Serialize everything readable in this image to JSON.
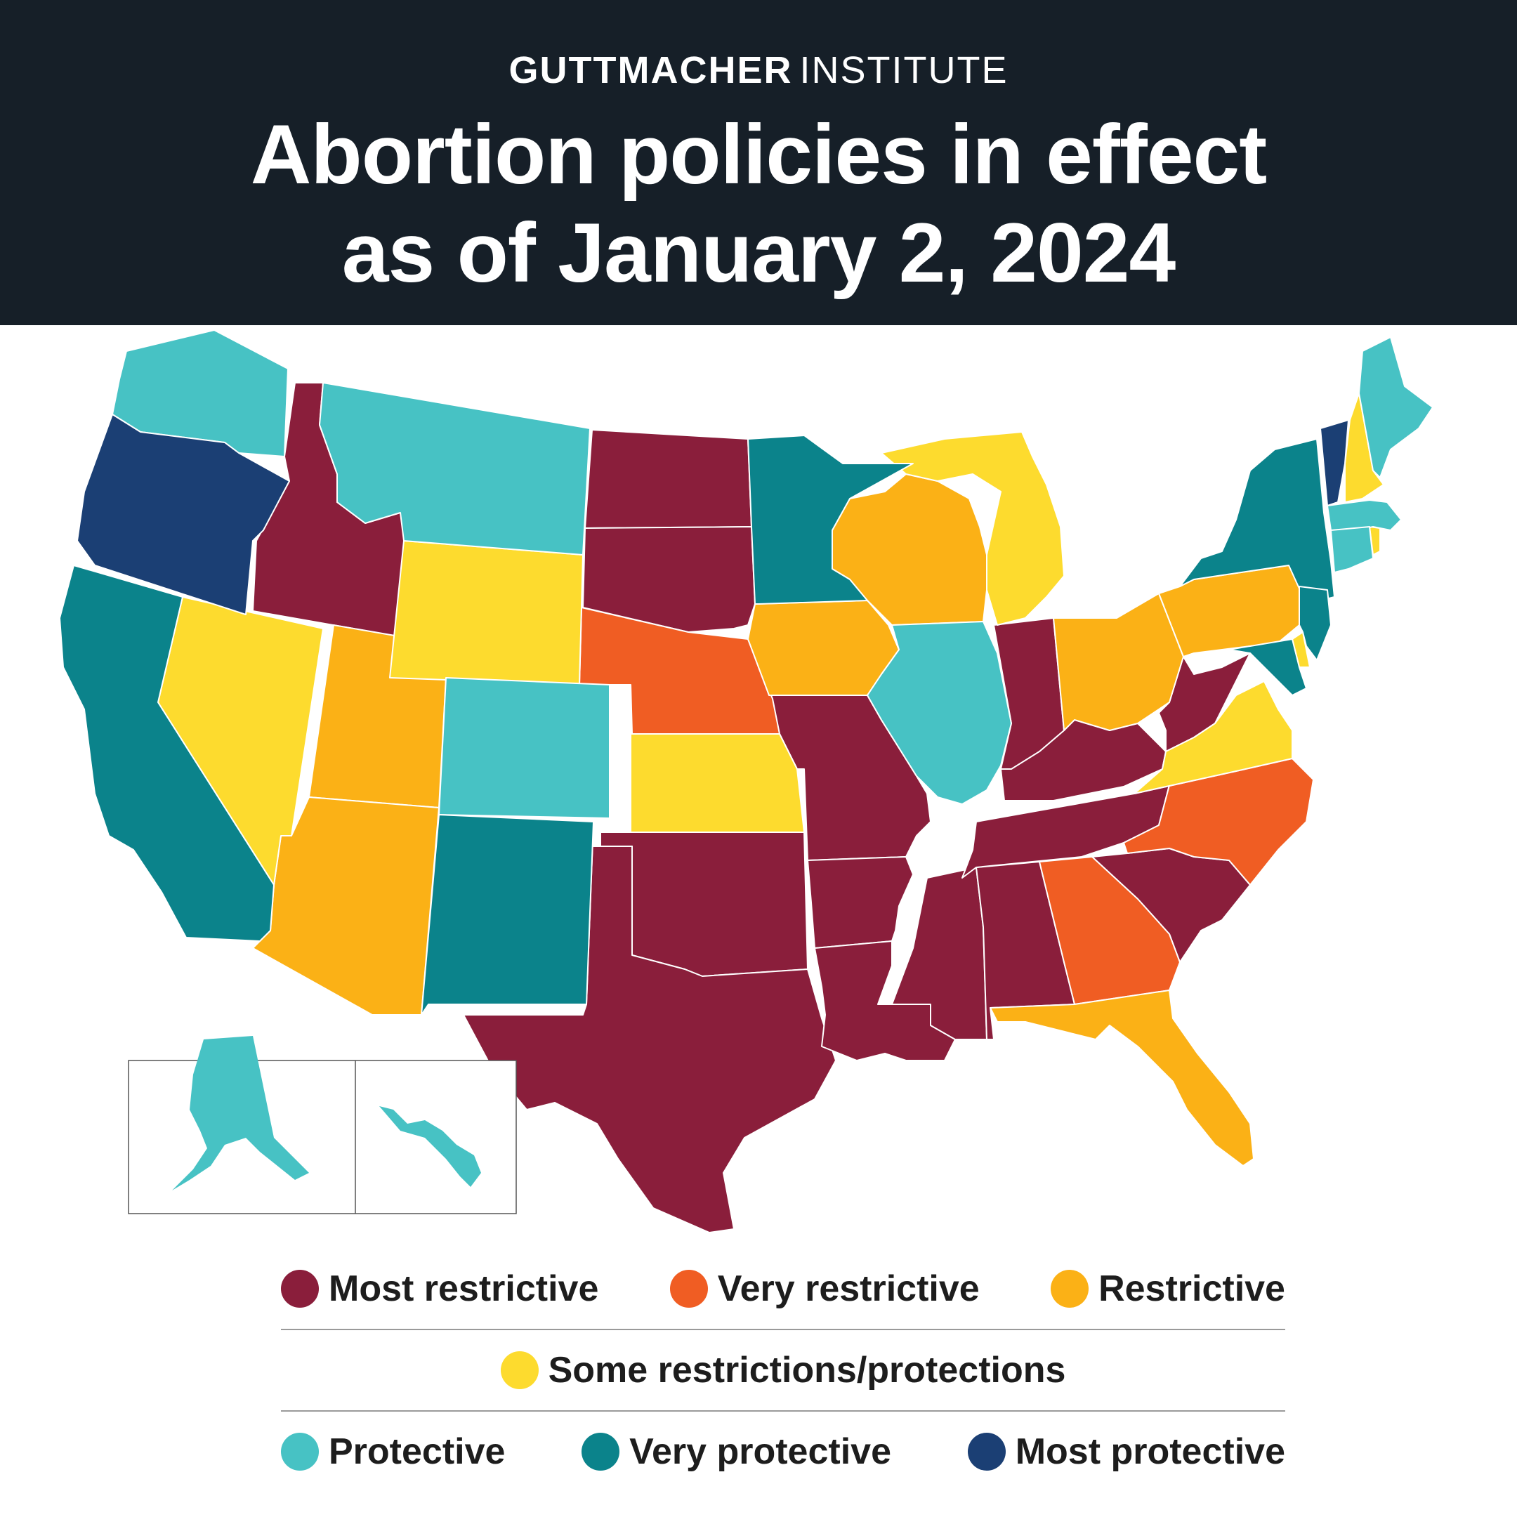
{
  "header": {
    "brand_strong": "GUTTMACHER",
    "brand_light": "INSTITUTE",
    "title_line1": "Abortion policies in effect",
    "title_line2": "as of January 2, 2024"
  },
  "colors": {
    "most_restrictive": "#8a1e3b",
    "very_restrictive": "#f05d23",
    "restrictive": "#fbb116",
    "some": "#fddb2e",
    "protective": "#47c2c4",
    "very_protective": "#0b838b",
    "most_protective": "#1b3f74",
    "header_bg": "#161f28"
  },
  "legend": {
    "row1": [
      {
        "label": "Most restrictive",
        "color": "#8a1e3b"
      },
      {
        "label": "Very restrictive",
        "color": "#f05d23"
      },
      {
        "label": "Restrictive",
        "color": "#fbb116"
      }
    ],
    "row2": [
      {
        "label": "Some restrictions/protections",
        "color": "#fddb2e"
      }
    ],
    "row3": [
      {
        "label": "Protective",
        "color": "#47c2c4"
      },
      {
        "label": "Very protective",
        "color": "#0b838b"
      },
      {
        "label": "Most protective",
        "color": "#1b3f74"
      }
    ]
  },
  "map_data": {
    "categories": {
      "most_restrictive": [
        "ID",
        "ND",
        "SD",
        "MO",
        "AR",
        "OK",
        "TX",
        "LA",
        "MS",
        "AL",
        "TN",
        "KY",
        "IN",
        "WV",
        "SC"
      ],
      "very_restrictive": [
        "NE",
        "GA",
        "NC"
      ],
      "restrictive": [
        "UT",
        "AZ",
        "IA",
        "WI",
        "OH",
        "PA",
        "FL"
      ],
      "some": [
        "NV",
        "WY",
        "KS",
        "MI",
        "VA",
        "NH",
        "DE",
        "RI"
      ],
      "protective": [
        "WA",
        "MT",
        "CO",
        "IL",
        "ME",
        "MA",
        "CT",
        "AK",
        "HI"
      ],
      "very_protective": [
        "CA",
        "NM",
        "MN",
        "NY",
        "NJ",
        "MD"
      ],
      "most_protective": [
        "OR",
        "VT"
      ]
    }
  }
}
